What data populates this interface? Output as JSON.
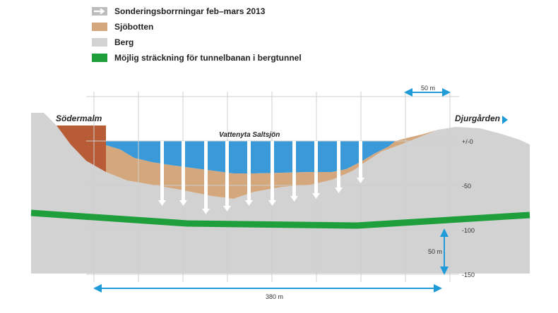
{
  "legend": [
    {
      "label": "Sonderingsborrningar feb–mars 2013",
      "icon": "boring-arrow-icon",
      "color": "#bdbdbd"
    },
    {
      "label": "Sjöbotten",
      "icon": "seabed-swatch",
      "color": "#d4a77c"
    },
    {
      "label": "Berg",
      "icon": "rock-swatch",
      "color": "#d2d2d2"
    },
    {
      "label": "Möjlig sträckning för tunnelbanan i bergtunnel",
      "icon": "tunnel-swatch",
      "color": "#1f9e3c"
    }
  ],
  "labels": {
    "sodermalm": "Södermalm",
    "djurgarden": "Djurgården",
    "water_surface": "Vattenyta Saltsjön"
  },
  "depth_scale": [
    "+/-0",
    "-50",
    "-100",
    "-150"
  ],
  "scale_bars": {
    "horizontal_top": "50 m",
    "vertical": "50 m",
    "total_width": "380 m"
  },
  "colors": {
    "water": "#3a9ad9",
    "seabed": "#d4a77c",
    "rock": "#d2d2d2",
    "sodermalm_fill": "#b85c36",
    "tunnel": "#1f9e3c",
    "accent_arrow": "#1f9bd7",
    "boring": "#ffffff"
  }
}
